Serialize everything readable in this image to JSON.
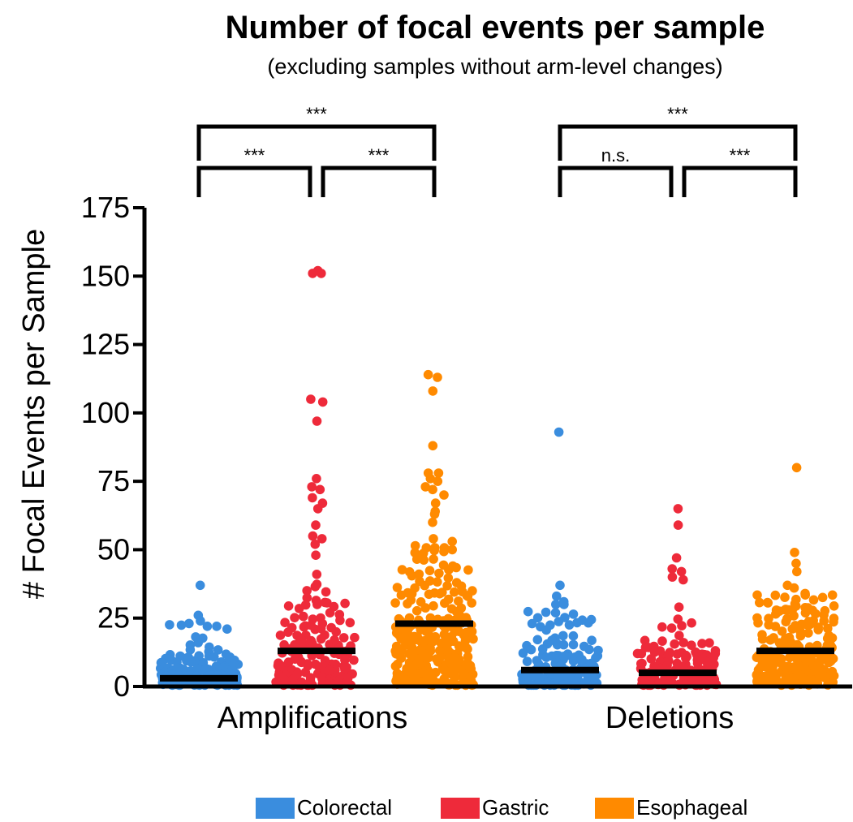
{
  "chart_data": {
    "type": "scatter",
    "title": "Number of focal events per sample",
    "subtitle": "(excluding samples without arm-level changes)",
    "ylabel": "# Focal Events per Sample",
    "ylim": [
      0,
      175
    ],
    "yticks": [
      0,
      25,
      50,
      75,
      100,
      125,
      150,
      175
    ],
    "groups": [
      "Amplifications",
      "Deletions"
    ],
    "series_names": [
      "Colorectal",
      "Gastric",
      "Esophageal"
    ],
    "colors": {
      "Colorectal": "#3a8dde",
      "Gastric": "#ee2a3a",
      "Esophageal": "#ff8a00"
    },
    "legend": [
      "Colorectal",
      "Gastric",
      "Esophageal"
    ],
    "legend_position": "bottom",
    "medians": {
      "Amplifications": {
        "Colorectal": 3,
        "Gastric": 13,
        "Esophageal": 23
      },
      "Deletions": {
        "Colorectal": 6,
        "Gastric": 5,
        "Esophageal": 13
      }
    },
    "highlighted_points": {
      "Amplifications": {
        "Colorectal": [
          37,
          26,
          24,
          22,
          22,
          21
        ],
        "Gastric": [
          152,
          151,
          151,
          105,
          104,
          97,
          76,
          73,
          72,
          69,
          67,
          65,
          59,
          55,
          54,
          52,
          48,
          41
        ],
        "Esophageal": [
          114,
          113,
          108,
          88,
          78,
          78,
          76,
          75,
          73,
          72,
          70,
          67,
          64,
          63,
          60,
          54,
          53,
          50
        ]
      },
      "Deletions": {
        "Colorectal": [
          93,
          37,
          33,
          31,
          30,
          30
        ],
        "Gastric": [
          65,
          59,
          47,
          43,
          42,
          40,
          39,
          29
        ],
        "Esophageal": [
          80,
          49,
          45,
          42,
          37,
          36,
          34
        ]
      }
    },
    "significance": [
      {
        "group": "Amplifications",
        "from": "Colorectal",
        "to": "Esophageal",
        "label": "***"
      },
      {
        "group": "Amplifications",
        "from": "Colorectal",
        "to": "Gastric",
        "label": "***"
      },
      {
        "group": "Amplifications",
        "from": "Gastric",
        "to": "Esophageal",
        "label": "***"
      },
      {
        "group": "Deletions",
        "from": "Colorectal",
        "to": "Esophageal",
        "label": "***"
      },
      {
        "group": "Deletions",
        "from": "Colorectal",
        "to": "Gastric",
        "label": "n.s."
      },
      {
        "group": "Deletions",
        "from": "Gastric",
        "to": "Esophageal",
        "label": "***"
      }
    ]
  }
}
